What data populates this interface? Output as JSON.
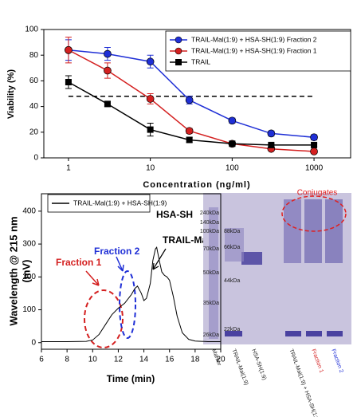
{
  "chart_data": [
    {
      "type": "line",
      "x_label": "Concentration (ng/ml)",
      "y_label": "Viability (%)",
      "log_x": true,
      "x": [
        1,
        3,
        10,
        30,
        100,
        300,
        1000
      ],
      "xlim": [
        0.5,
        2800
      ],
      "ylim": [
        0,
        100
      ],
      "xticks": [
        1,
        10,
        100,
        1000
      ],
      "yticks": [
        0,
        20,
        40,
        60,
        80,
        100
      ],
      "reference_line": 48,
      "legend": "upper right",
      "series": [
        {
          "name": "TRAIL-Mal(1:9) + HSA-SH(1:9) Fraction 2",
          "color": "#1f2fd6",
          "marker": "circle",
          "values": [
            84,
            81,
            75,
            45,
            29,
            19,
            16
          ],
          "errors": [
            8,
            5,
            5,
            3,
            2,
            2,
            2
          ]
        },
        {
          "name": "TRAIL-Mal(1:9) + HSA-SH(1:9) Fraction 1",
          "color": "#d42020",
          "marker": "circle",
          "values": [
            84,
            68,
            46,
            21,
            11,
            7,
            5
          ],
          "errors": [
            10,
            6,
            4,
            2,
            1,
            1,
            1
          ]
        },
        {
          "name": "TRAIL",
          "color": "#000000",
          "marker": "square",
          "values": [
            59,
            42,
            22,
            14,
            11,
            10,
            10
          ],
          "errors": [
            5,
            2,
            5,
            2,
            2,
            1,
            1
          ]
        }
      ]
    },
    {
      "type": "line",
      "x_label": "Time (min)",
      "y_label": [
        "Wavelength @ 215 nm",
        "(mV)"
      ],
      "x": [
        6,
        8,
        9.5,
        10,
        10.5,
        11,
        11.5,
        12,
        12.5,
        13,
        13.3,
        13.5,
        13.8,
        14,
        14.2,
        14.5,
        14.7,
        14.9,
        15.0,
        15.2,
        15.4,
        15.6,
        15.8,
        16,
        16.3,
        16.6,
        17,
        17.5,
        18,
        19,
        20
      ],
      "xlim": [
        6,
        20
      ],
      "ylim": [
        -20,
        453
      ],
      "xticks": [
        6,
        8,
        10,
        12,
        14,
        16,
        18,
        20
      ],
      "yticks": [
        0,
        100,
        200,
        300,
        400
      ],
      "series": [
        {
          "name": "TRAIL-Mal(1:9) + HSA-SH(1:9)",
          "color": "#000000",
          "values": [
            3,
            3,
            4,
            8,
            25,
            55,
            85,
            105,
            120,
            145,
            165,
            172,
            150,
            128,
            135,
            180,
            250,
            285,
            290,
            250,
            215,
            205,
            200,
            190,
            140,
            80,
            30,
            10,
            5,
            3,
            3
          ]
        }
      ],
      "annotations": [
        "Fraction 1",
        "Fraction 2",
        "HSA-SH",
        "TRAIL-Mal"
      ]
    }
  ],
  "gel": {
    "title": "Conjugates",
    "marker_labels": [
      "240kDa",
      "140kDa",
      "100kDa",
      "70kDa",
      "50kDa",
      "35kDa",
      "26kDa"
    ],
    "band_labels": [
      "88kDa",
      "66kDa",
      "44kDa",
      "22kDa"
    ],
    "lanes": [
      "Marker",
      "TRAIL-Mal(1:9)",
      "HSA-SH(1:9)",
      "TRAIL-Mal(1:9) + HSA-SH(1:9)",
      "Fraction 1",
      "Fraction 2"
    ]
  }
}
